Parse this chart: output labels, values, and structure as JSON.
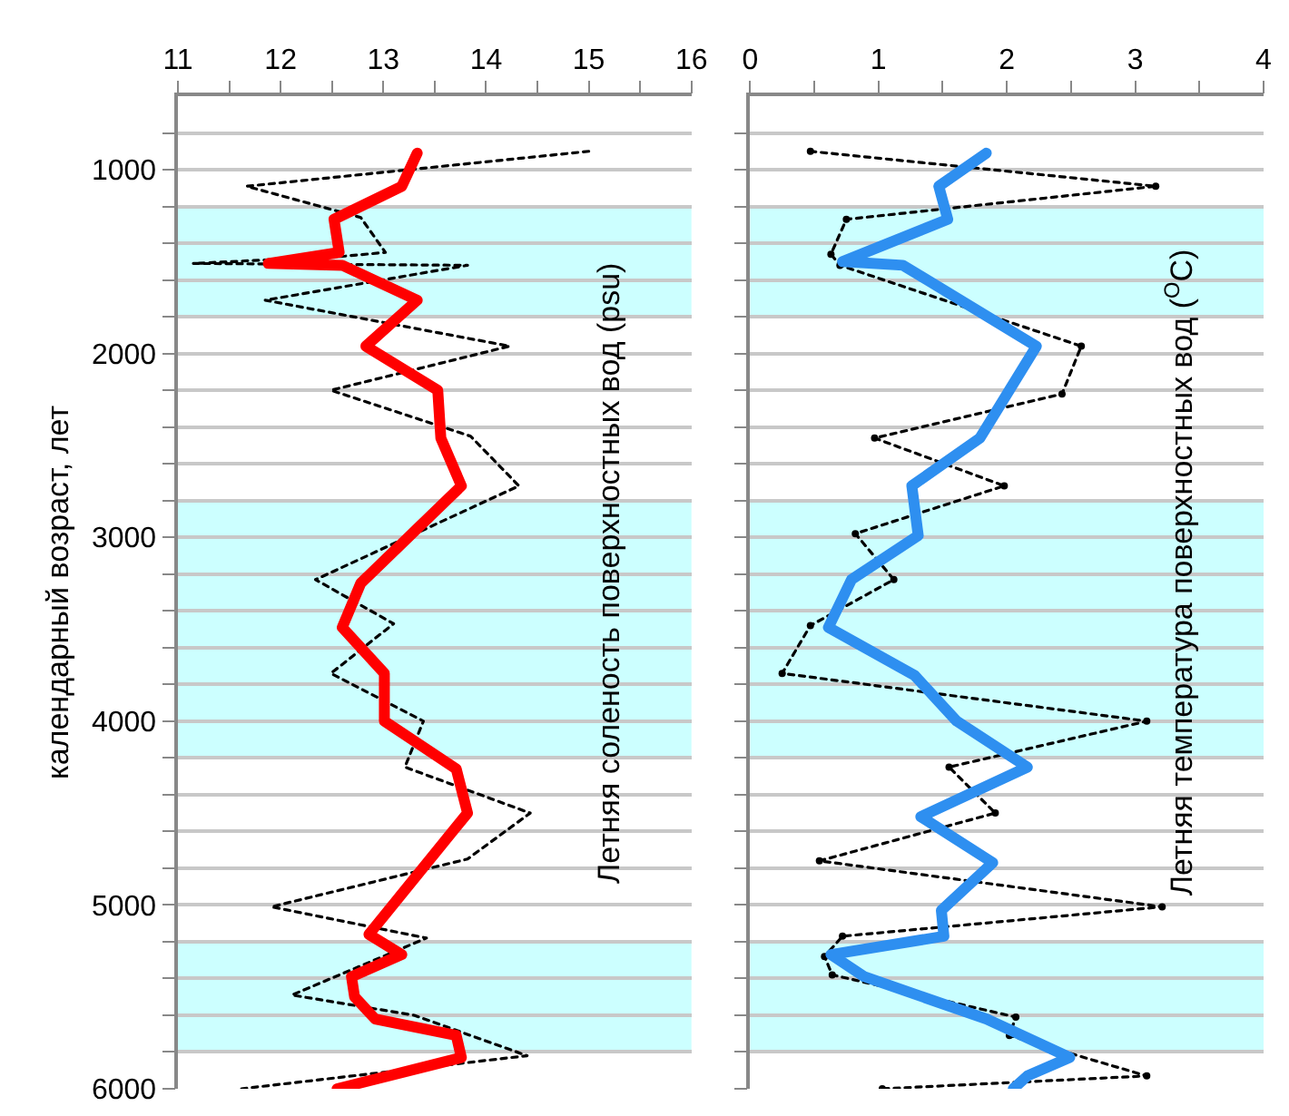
{
  "chart_data": [
    {
      "type": "line",
      "ylabel": "календарный возраст, лет",
      "annotations": [
        "Летняя соленость поверхностных вод (psu)"
      ],
      "xlim": [
        11,
        16
      ],
      "xticks": [
        11,
        {
          "value": 11.5,
          "label": null
        },
        12,
        {
          "value": 12.5,
          "label": null
        },
        13,
        {
          "value": 13.5,
          "label": null
        },
        14,
        {
          "value": 14.5,
          "label": null
        },
        15,
        {
          "value": 15.5,
          "label": null
        },
        16
      ],
      "ylim": [
        6000,
        600
      ],
      "yticks": [
        {
          "value": 800,
          "label": null
        },
        1000,
        {
          "value": 1200,
          "label": null
        },
        {
          "value": 1400,
          "label": null
        },
        {
          "value": 1600,
          "label": null
        },
        {
          "value": 1800,
          "label": null
        },
        2000,
        {
          "value": 2200,
          "label": null
        },
        {
          "value": 2400,
          "label": null
        },
        {
          "value": 2600,
          "label": null
        },
        {
          "value": 2800,
          "label": null
        },
        3000,
        {
          "value": 3200,
          "label": null
        },
        {
          "value": 3400,
          "label": null
        },
        {
          "value": 3600,
          "label": null
        },
        {
          "value": 3800,
          "label": null
        },
        4000,
        {
          "value": 4200,
          "label": null
        },
        {
          "value": 4400,
          "label": null
        },
        {
          "value": 4600,
          "label": null
        },
        {
          "value": 4800,
          "label": null
        },
        5000,
        {
          "value": 5200,
          "label": null
        },
        {
          "value": 5400,
          "label": null
        },
        {
          "value": 5600,
          "label": null
        },
        {
          "value": 5800,
          "label": null
        },
        6000
      ],
      "grid": "y",
      "bands": [
        {
          "axis": "y",
          "from": 1200,
          "to": 1800,
          "color": "#ccffff"
        },
        {
          "axis": "y",
          "from": 2800,
          "to": 4200,
          "color": "#ccffff"
        },
        {
          "axis": "y",
          "from": 5200,
          "to": 5800,
          "color": "#ccffff"
        }
      ],
      "series": [
        {
          "color": "#000000",
          "line_style": "dotted",
          "marker": "none",
          "x": [
            15.0,
            11.67,
            12.78,
            13.02,
            12.63,
            11.15,
            13.82,
            11.85,
            14.23,
            12.49,
            13.85,
            14.32,
            12.34,
            13.1,
            12.49,
            13.39,
            13.21,
            14.43,
            13.82,
            11.91,
            13.42,
            12.11,
            13.3,
            14.4,
            11.62
          ],
          "values": [
            900,
            1090,
            1260,
            1450,
            1470,
            1510,
            1520,
            1710,
            1960,
            2200,
            2450,
            2720,
            3230,
            3470,
            3740,
            4000,
            4250,
            4500,
            4750,
            5010,
            5180,
            5490,
            5600,
            5820,
            6000
          ]
        },
        {
          "color": "#ff0000",
          "line_style": "solid",
          "marker": "none",
          "x": [
            13.33,
            13.18,
            12.52,
            12.57,
            11.88,
            12.6,
            13.33,
            12.83,
            13.53,
            13.56,
            13.76,
            12.78,
            12.6,
            13.01,
            13.01,
            13.71,
            13.82,
            12.86,
            13.18,
            12.69,
            12.72,
            12.92,
            13.71,
            13.76,
            12.55
          ],
          "values": [
            910,
            1090,
            1270,
            1450,
            1510,
            1520,
            1710,
            1960,
            2200,
            2460,
            2720,
            3250,
            3490,
            3740,
            4000,
            4260,
            4500,
            5160,
            5270,
            5390,
            5500,
            5620,
            5710,
            5830,
            6000
          ]
        }
      ]
    },
    {
      "type": "line",
      "annotations": [
        "Летняя температура поверхностных вод ($^{O}$C)"
      ],
      "xlim": [
        0,
        4
      ],
      "xticks": [
        0,
        {
          "value": 0.5,
          "label": null
        },
        1,
        {
          "value": 1.5,
          "label": null
        },
        2,
        {
          "value": 2.5,
          "label": null
        },
        3,
        {
          "value": 3.5,
          "label": null
        },
        4
      ],
      "ylim": [
        6000,
        600
      ],
      "yticks": [
        {
          "value": 800,
          "label": null
        },
        {
          "value": 1000,
          "label": null
        },
        {
          "value": 1200,
          "label": null
        },
        {
          "value": 1400,
          "label": null
        },
        {
          "value": 1600,
          "label": null
        },
        {
          "value": 1800,
          "label": null
        },
        {
          "value": 2000,
          "label": null
        },
        {
          "value": 2200,
          "label": null
        },
        {
          "value": 2400,
          "label": null
        },
        {
          "value": 2600,
          "label": null
        },
        {
          "value": 2800,
          "label": null
        },
        {
          "value": 3000,
          "label": null
        },
        {
          "value": 3200,
          "label": null
        },
        {
          "value": 3400,
          "label": null
        },
        {
          "value": 3600,
          "label": null
        },
        {
          "value": 3800,
          "label": null
        },
        {
          "value": 4000,
          "label": null
        },
        {
          "value": 4200,
          "label": null
        },
        {
          "value": 4400,
          "label": null
        },
        {
          "value": 4600,
          "label": null
        },
        {
          "value": 4800,
          "label": null
        },
        {
          "value": 5000,
          "label": null
        },
        {
          "value": 5200,
          "label": null
        },
        {
          "value": 5400,
          "label": null
        },
        {
          "value": 5600,
          "label": null
        },
        {
          "value": 5800,
          "label": null
        },
        {
          "value": 6000,
          "label": null
        }
      ],
      "tick_labels": "x",
      "grid": "y",
      "bands": [
        {
          "axis": "y",
          "from": 1200,
          "to": 1800,
          "color": "#ccffff"
        },
        {
          "axis": "y",
          "from": 2800,
          "to": 4200,
          "color": "#ccffff"
        },
        {
          "axis": "y",
          "from": 5200,
          "to": 5800,
          "color": "#ccffff"
        }
      ],
      "series": [
        {
          "color": "#000000",
          "line_style": "dotted",
          "marker": "circle",
          "x": [
            0.47,
            3.16,
            0.75,
            0.63,
            0.7,
            2.58,
            2.43,
            0.97,
            1.98,
            0.82,
            1.12,
            0.47,
            0.25,
            3.09,
            1.55,
            1.91,
            0.54,
            3.21,
            0.72,
            0.58,
            0.64,
            2.07,
            2.02,
            3.09,
            1.03
          ],
          "values": [
            900,
            1090,
            1270,
            1460,
            1520,
            1960,
            2220,
            2460,
            2720,
            2980,
            3230,
            3480,
            3740,
            4000,
            4250,
            4500,
            4760,
            5010,
            5170,
            5280,
            5380,
            5610,
            5710,
            5930,
            6000
          ]
        },
        {
          "color": "#2e8ff0",
          "line_style": "solid",
          "marker": "none",
          "x": [
            1.84,
            1.47,
            1.54,
            0.72,
            1.19,
            2.23,
            1.79,
            1.26,
            1.31,
            0.79,
            0.61,
            1.28,
            1.61,
            2.16,
            1.33,
            1.89,
            1.49,
            1.51,
            0.63,
            0.89,
            1.84,
            2.49,
            2.16,
            2.05
          ],
          "values": [
            910,
            1090,
            1270,
            1500,
            1520,
            1960,
            2460,
            2720,
            2990,
            3230,
            3490,
            3750,
            4000,
            4250,
            4520,
            4770,
            5030,
            5170,
            5270,
            5390,
            5620,
            5830,
            5930,
            6000
          ]
        }
      ]
    }
  ]
}
